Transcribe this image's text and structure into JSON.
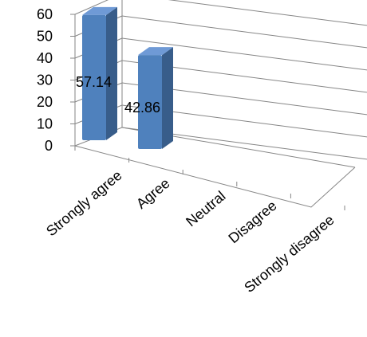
{
  "chart_data": {
    "type": "bar",
    "title": "",
    "xlabel": "",
    "ylabel": "",
    "categories": [
      "Strongly agree",
      "Agree",
      "Neutral",
      "Disagree",
      "Strongly disagree"
    ],
    "values": [
      57.14,
      42.86,
      0,
      0,
      0
    ],
    "data_labels": [
      "57.14",
      "42.86",
      "",
      "",
      ""
    ],
    "yticks": [
      "0",
      "10",
      "20",
      "30",
      "40",
      "50",
      "60"
    ],
    "ylim": [
      0,
      60
    ],
    "grid": true,
    "style": "3d-column",
    "colors": {
      "bar_front": "#4F81BD",
      "bar_side": "#385D8A",
      "bar_top": "#6F9AD6",
      "grid": "#868686"
    }
  }
}
